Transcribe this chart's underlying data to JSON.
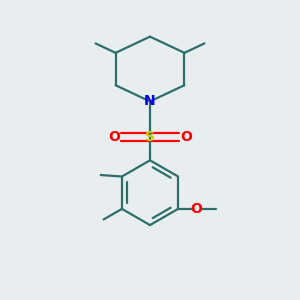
{
  "background_color": "#e8edf0",
  "bond_color": "#2d6e6a",
  "atom_colors": {
    "N": "#0000ee",
    "S": "#cccc00",
    "O": "#ff0000",
    "C": "#2d6e6a"
  },
  "figsize": [
    3.0,
    3.0
  ],
  "dpi": 100
}
